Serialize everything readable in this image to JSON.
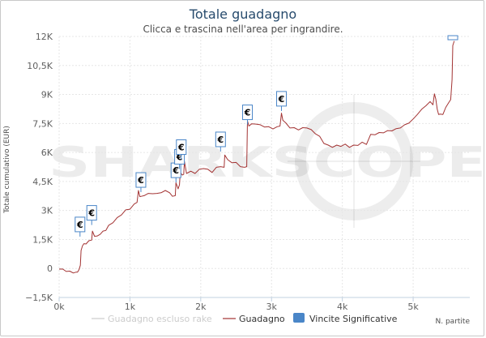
{
  "chart_data": {
    "type": "line",
    "title": "Totale guadagno",
    "subtitle": "Clicca e trascina nell'area per ingrandire.",
    "ylabel": "Totale cumulativo (EUR)",
    "xlabel": "N. partite",
    "xlim": [
      0,
      5800
    ],
    "ylim": [
      -1500,
      12000
    ],
    "x_ticks": [
      0,
      1000,
      2000,
      3000,
      4000,
      5000
    ],
    "x_tick_labels": [
      "0k",
      "1k",
      "2k",
      "3k",
      "4k",
      "5k"
    ],
    "y_ticks": [
      -1500,
      0,
      1500,
      3000,
      4500,
      6000,
      7500,
      9000,
      10500,
      12000
    ],
    "y_tick_labels": [
      "−1,5K",
      "0",
      "1,5K",
      "3K",
      "4,5K",
      "6K",
      "7,5K",
      "9K",
      "10,5K",
      "12K"
    ],
    "grid": true,
    "legend_position": "bottom",
    "colors": {
      "guadagno": "#a33333",
      "escluso_rake": "#cccccc",
      "vincite": "#4a86c8",
      "title": "#274b6d"
    },
    "series": [
      {
        "name": "Guadagno escluso rake",
        "values": []
      },
      {
        "name": "Guadagno",
        "x": [
          0,
          50,
          100,
          150,
          200,
          240,
          260,
          280,
          300,
          310,
          330,
          350,
          380,
          420,
          460,
          470,
          500,
          540,
          580,
          620,
          660,
          700,
          760,
          820,
          880,
          940,
          1000,
          1060,
          1100,
          1120,
          1140,
          1160,
          1200,
          1260,
          1320,
          1380,
          1440,
          1500,
          1560,
          1600,
          1640,
          1650,
          1680,
          1700,
          1710,
          1740,
          1760,
          1770,
          1800,
          1860,
          1920,
          1980,
          2040,
          2100,
          2160,
          2220,
          2280,
          2330,
          2340,
          2380,
          2440,
          2500,
          2560,
          2620,
          2650,
          2660,
          2680,
          2720,
          2780,
          2840,
          2900,
          2960,
          3020,
          3080,
          3120,
          3140,
          3160,
          3200,
          3260,
          3320,
          3380,
          3440,
          3500,
          3560,
          3620,
          3680,
          3740,
          3800,
          3860,
          3920,
          3980,
          4040,
          4100,
          4160,
          4220,
          4280,
          4340,
          4400,
          4460,
          4520,
          4580,
          4640,
          4700,
          4760,
          4820,
          4880,
          4940,
          5000,
          5060,
          5120,
          5180,
          5240,
          5280,
          5300,
          5320,
          5340,
          5360,
          5380,
          5420,
          5460,
          5500,
          5530,
          5550,
          5560,
          5580
        ],
        "values": [
          0,
          -60,
          -120,
          -170,
          -200,
          -220,
          -160,
          -100,
          200,
          900,
          1200,
          1250,
          1300,
          1400,
          1500,
          1900,
          1700,
          1650,
          1800,
          1900,
          2000,
          2200,
          2400,
          2600,
          2800,
          3000,
          3100,
          3300,
          3450,
          4000,
          3750,
          3700,
          3800,
          3850,
          3900,
          3850,
          3950,
          4000,
          3950,
          3700,
          3800,
          4400,
          4150,
          4300,
          5000,
          4800,
          4900,
          5500,
          4950,
          5000,
          4950,
          5100,
          5200,
          5100,
          5000,
          5200,
          5300,
          5200,
          5900,
          5600,
          5500,
          5450,
          5300,
          5200,
          5300,
          7600,
          7400,
          7450,
          7500,
          7400,
          7350,
          7300,
          7250,
          7300,
          7400,
          8000,
          7700,
          7500,
          7300,
          7250,
          7200,
          7250,
          7300,
          7150,
          7000,
          6800,
          6500,
          6350,
          6300,
          6350,
          6350,
          6400,
          6300,
          6350,
          6400,
          6500,
          6450,
          6900,
          6950,
          7000,
          7050,
          7100,
          7150,
          7200,
          7300,
          7400,
          7550,
          7700,
          8000,
          8200,
          8450,
          8600,
          8500,
          9000,
          8800,
          8200,
          8000,
          7950,
          8000,
          8300,
          8600,
          8700,
          9800,
          11500,
          11800
        ]
      },
      {
        "name": "Vincite Significative",
        "markers": [
          {
            "x": 295,
            "y": 1900,
            "label": "€"
          },
          {
            "x": 460,
            "y": 2500,
            "label": "€"
          },
          {
            "x": 1155,
            "y": 4200,
            "label": "€"
          },
          {
            "x": 1650,
            "y": 4700,
            "label": "€"
          },
          {
            "x": 1700,
            "y": 5400,
            "label": "€"
          },
          {
            "x": 1725,
            "y": 5900,
            "label": "€"
          },
          {
            "x": 2280,
            "y": 6300,
            "label": "€"
          },
          {
            "x": 2660,
            "y": 7700,
            "label": "€"
          },
          {
            "x": 3140,
            "y": 8400,
            "label": "€"
          },
          {
            "x": 5560,
            "y": 12000,
            "label": ""
          }
        ]
      }
    ]
  },
  "watermark": "SHARKSCOPE"
}
